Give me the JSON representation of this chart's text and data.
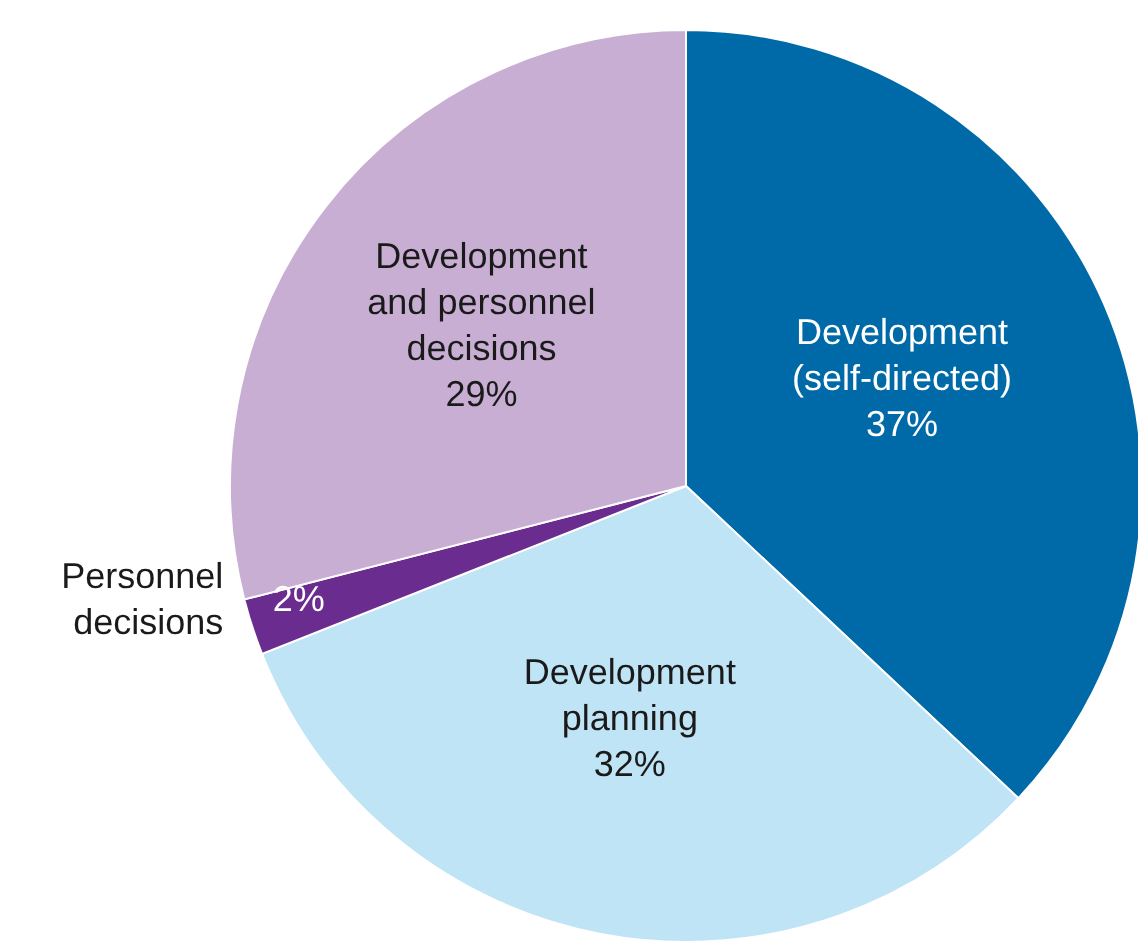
{
  "chart_data": {
    "type": "pie",
    "categories": [
      "Development (self-directed)",
      "Development planning",
      "Personnel decisions",
      "Development and personnel decisions"
    ],
    "values": [
      37,
      32,
      2,
      29
    ],
    "value_labels": [
      "37%",
      "32%",
      "2%",
      "29%"
    ],
    "colors": [
      "#006aa8",
      "#bfe4f5",
      "#6b2c8f",
      "#c9aed4"
    ],
    "legend": false
  }
}
